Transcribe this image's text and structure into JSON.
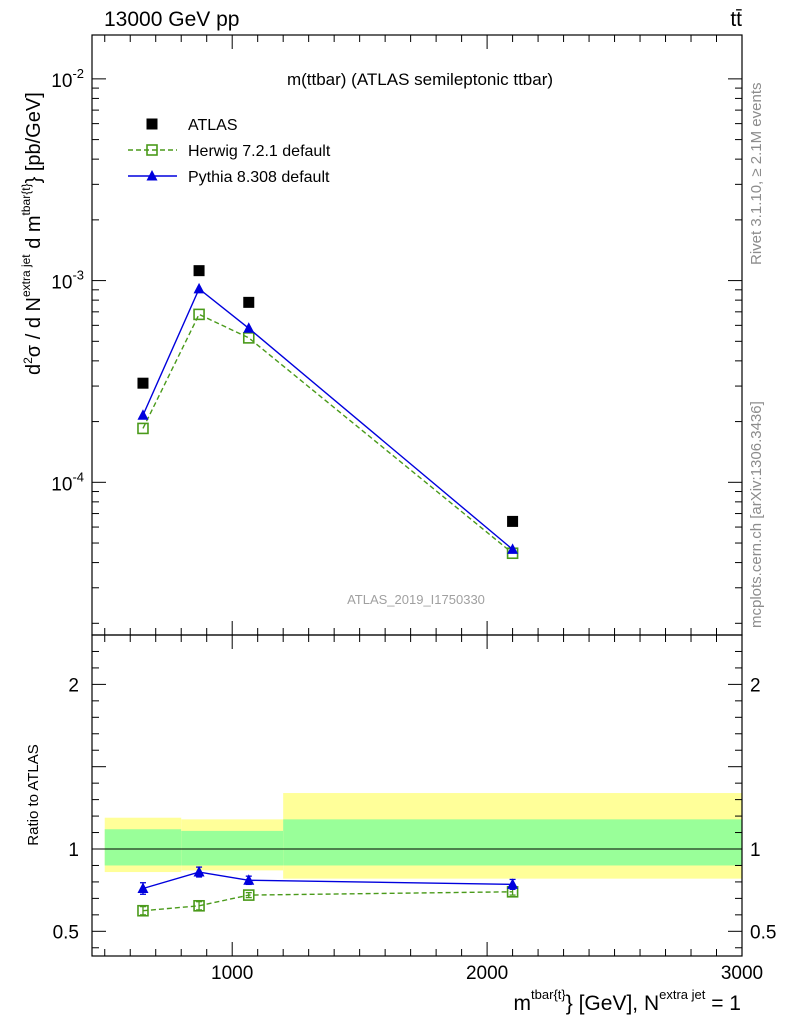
{
  "header": {
    "left": "13000 GeV pp",
    "right": "tt̄"
  },
  "side_labels": {
    "rivet": "Rivet 3.1.10, ≥ 2.1M events",
    "mcplots": "mcplots.cern.ch [arXiv:1306.3436]"
  },
  "chart_data": [
    {
      "type": "scatter",
      "title": "m(ttbar) (ATLAS semileptonic ttbar)",
      "watermark": "ATLAS_2019_I1750330",
      "ylabel": "d²σ / d N^{extra jet} d m^{tbar{t}} [pb/GeV]",
      "ylabel_parts": {
        "pre": "d",
        "sup1": "2",
        "mid": "σ / d N",
        "sup2": "extra jet",
        "mid2": " d m",
        "sup3": "tbar{t}",
        "post": "} [pb/GeV]"
      },
      "yscale": "log",
      "xlim": [
        450,
        3000
      ],
      "ylim": [
        1.75e-05,
        0.0165
      ],
      "y_tick_labels": [
        {
          "base": "10",
          "exp": "-2",
          "value": 0.01
        },
        {
          "base": "10",
          "exp": "-3",
          "value": 0.001
        },
        {
          "base": "10",
          "exp": "-4",
          "value": 0.0001
        }
      ],
      "legend_position": "top-left",
      "series": [
        {
          "name": "ATLAS",
          "color": "#000000",
          "marker": "filled-square",
          "x": [
            650,
            870,
            1065,
            2100
          ],
          "y": [
            0.00031,
            0.00112,
            0.00078,
            6.4e-05
          ]
        },
        {
          "name": "Herwig 7.2.1 default",
          "color": "#4a9a1a",
          "marker": "open-square",
          "line": "dashed",
          "x": [
            650,
            870,
            1065,
            2100
          ],
          "y": [
            0.000185,
            0.00068,
            0.00052,
            4.45e-05
          ]
        },
        {
          "name": "Pythia 8.308 default",
          "color": "#0000dd",
          "marker": "filled-triangle",
          "line": "solid",
          "x": [
            650,
            870,
            1065,
            2100
          ],
          "y": [
            0.000215,
            0.00091,
            0.00058,
            4.65e-05
          ]
        }
      ]
    },
    {
      "type": "scatter",
      "ylabel": "Ratio to ATLAS",
      "xlabel_parts": {
        "pre": "m",
        "sup1": "tbar{t}",
        "mid": "} [GeV], N",
        "sup2": "extra jet",
        "post": " = 1"
      },
      "xlim": [
        450,
        3000
      ],
      "ylim": [
        0.35,
        2.3
      ],
      "x_tick_labels": [
        "1000",
        "2000",
        "3000"
      ],
      "x_tick_values": [
        1000,
        2000,
        3000
      ],
      "y_tick_labels": [
        "2",
        "1",
        "0.5"
      ],
      "y_tick_values": [
        2,
        1,
        0.5
      ],
      "reference_line": 1,
      "uncertainty_bands": {
        "bins": [
          [
            500,
            800
          ],
          [
            800,
            1200
          ],
          [
            1200,
            3000
          ]
        ],
        "inner": [
          [
            0.9,
            1.12
          ],
          [
            0.9,
            1.11
          ],
          [
            0.9,
            1.18
          ]
        ],
        "outer": [
          [
            0.86,
            1.19
          ],
          [
            0.87,
            1.18
          ],
          [
            0.82,
            1.34
          ]
        ],
        "inner_color": "#99ff99",
        "outer_color": "#ffff99"
      },
      "series": [
        {
          "name": "Herwig 7.2.1 default",
          "color": "#4a9a1a",
          "marker": "open-square",
          "line": "dashed",
          "x": [
            650,
            870,
            1065,
            2100
          ],
          "y": [
            0.625,
            0.655,
            0.72,
            0.74
          ],
          "yerr": [
            0.025,
            0.025,
            0.015,
            0.02
          ]
        },
        {
          "name": "Pythia 8.308 default",
          "color": "#0000dd",
          "marker": "filled-triangle",
          "line": "solid",
          "x": [
            650,
            870,
            1065,
            2100
          ],
          "y": [
            0.76,
            0.86,
            0.81,
            0.785
          ],
          "yerr": [
            0.035,
            0.03,
            0.025,
            0.03
          ]
        }
      ]
    }
  ]
}
